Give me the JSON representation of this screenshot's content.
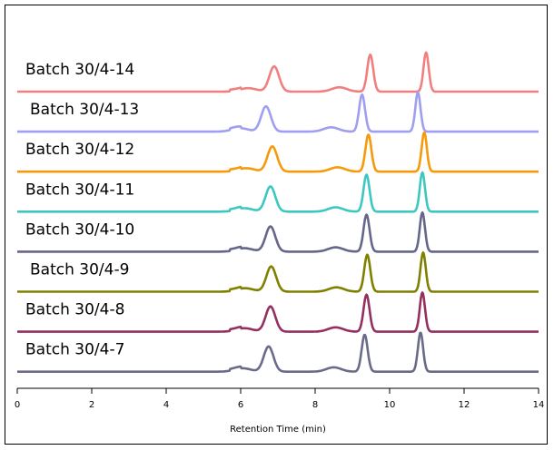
{
  "chart_data": {
    "type": "line",
    "title": "",
    "xlabel": "Retention Time (min)",
    "ylabel": "",
    "xlim": [
      0,
      14
    ],
    "xticks": [
      0,
      2,
      4,
      6,
      8,
      10,
      12,
      14
    ],
    "grid": false,
    "legend": "none",
    "peaks": [
      {
        "x": 6.1,
        "height": 0.08,
        "width": 0.22
      },
      {
        "x": 6.8,
        "height": 0.58,
        "width": 0.13
      },
      {
        "x": 8.55,
        "height": 0.1,
        "width": 0.2
      },
      {
        "x": 9.38,
        "height": 0.85,
        "width": 0.08
      },
      {
        "x": 10.88,
        "height": 0.9,
        "width": 0.07
      }
    ],
    "series": [
      {
        "name": "Batch 30/4-14",
        "color": "#f08080",
        "x_shift": 0.1
      },
      {
        "name": "Batch 30/4-13",
        "color": "#9f9ff0",
        "x_shift": -0.12
      },
      {
        "name": "Batch 30/4-12",
        "color": "#f59a0a",
        "x_shift": 0.05
      },
      {
        "name": "Batch 30/4-11",
        "color": "#3ec7c0",
        "x_shift": 0.0
      },
      {
        "name": "Batch 30/4-10",
        "color": "#66668a",
        "x_shift": 0.0
      },
      {
        "name": "Batch 30/4-9",
        "color": "#808000",
        "x_shift": 0.02
      },
      {
        "name": "Batch 30/4-8",
        "color": "#94305f",
        "x_shift": 0.0
      },
      {
        "name": "Batch 30/4-7",
        "color": "#6a6a8a",
        "x_shift": -0.05
      }
    ]
  }
}
